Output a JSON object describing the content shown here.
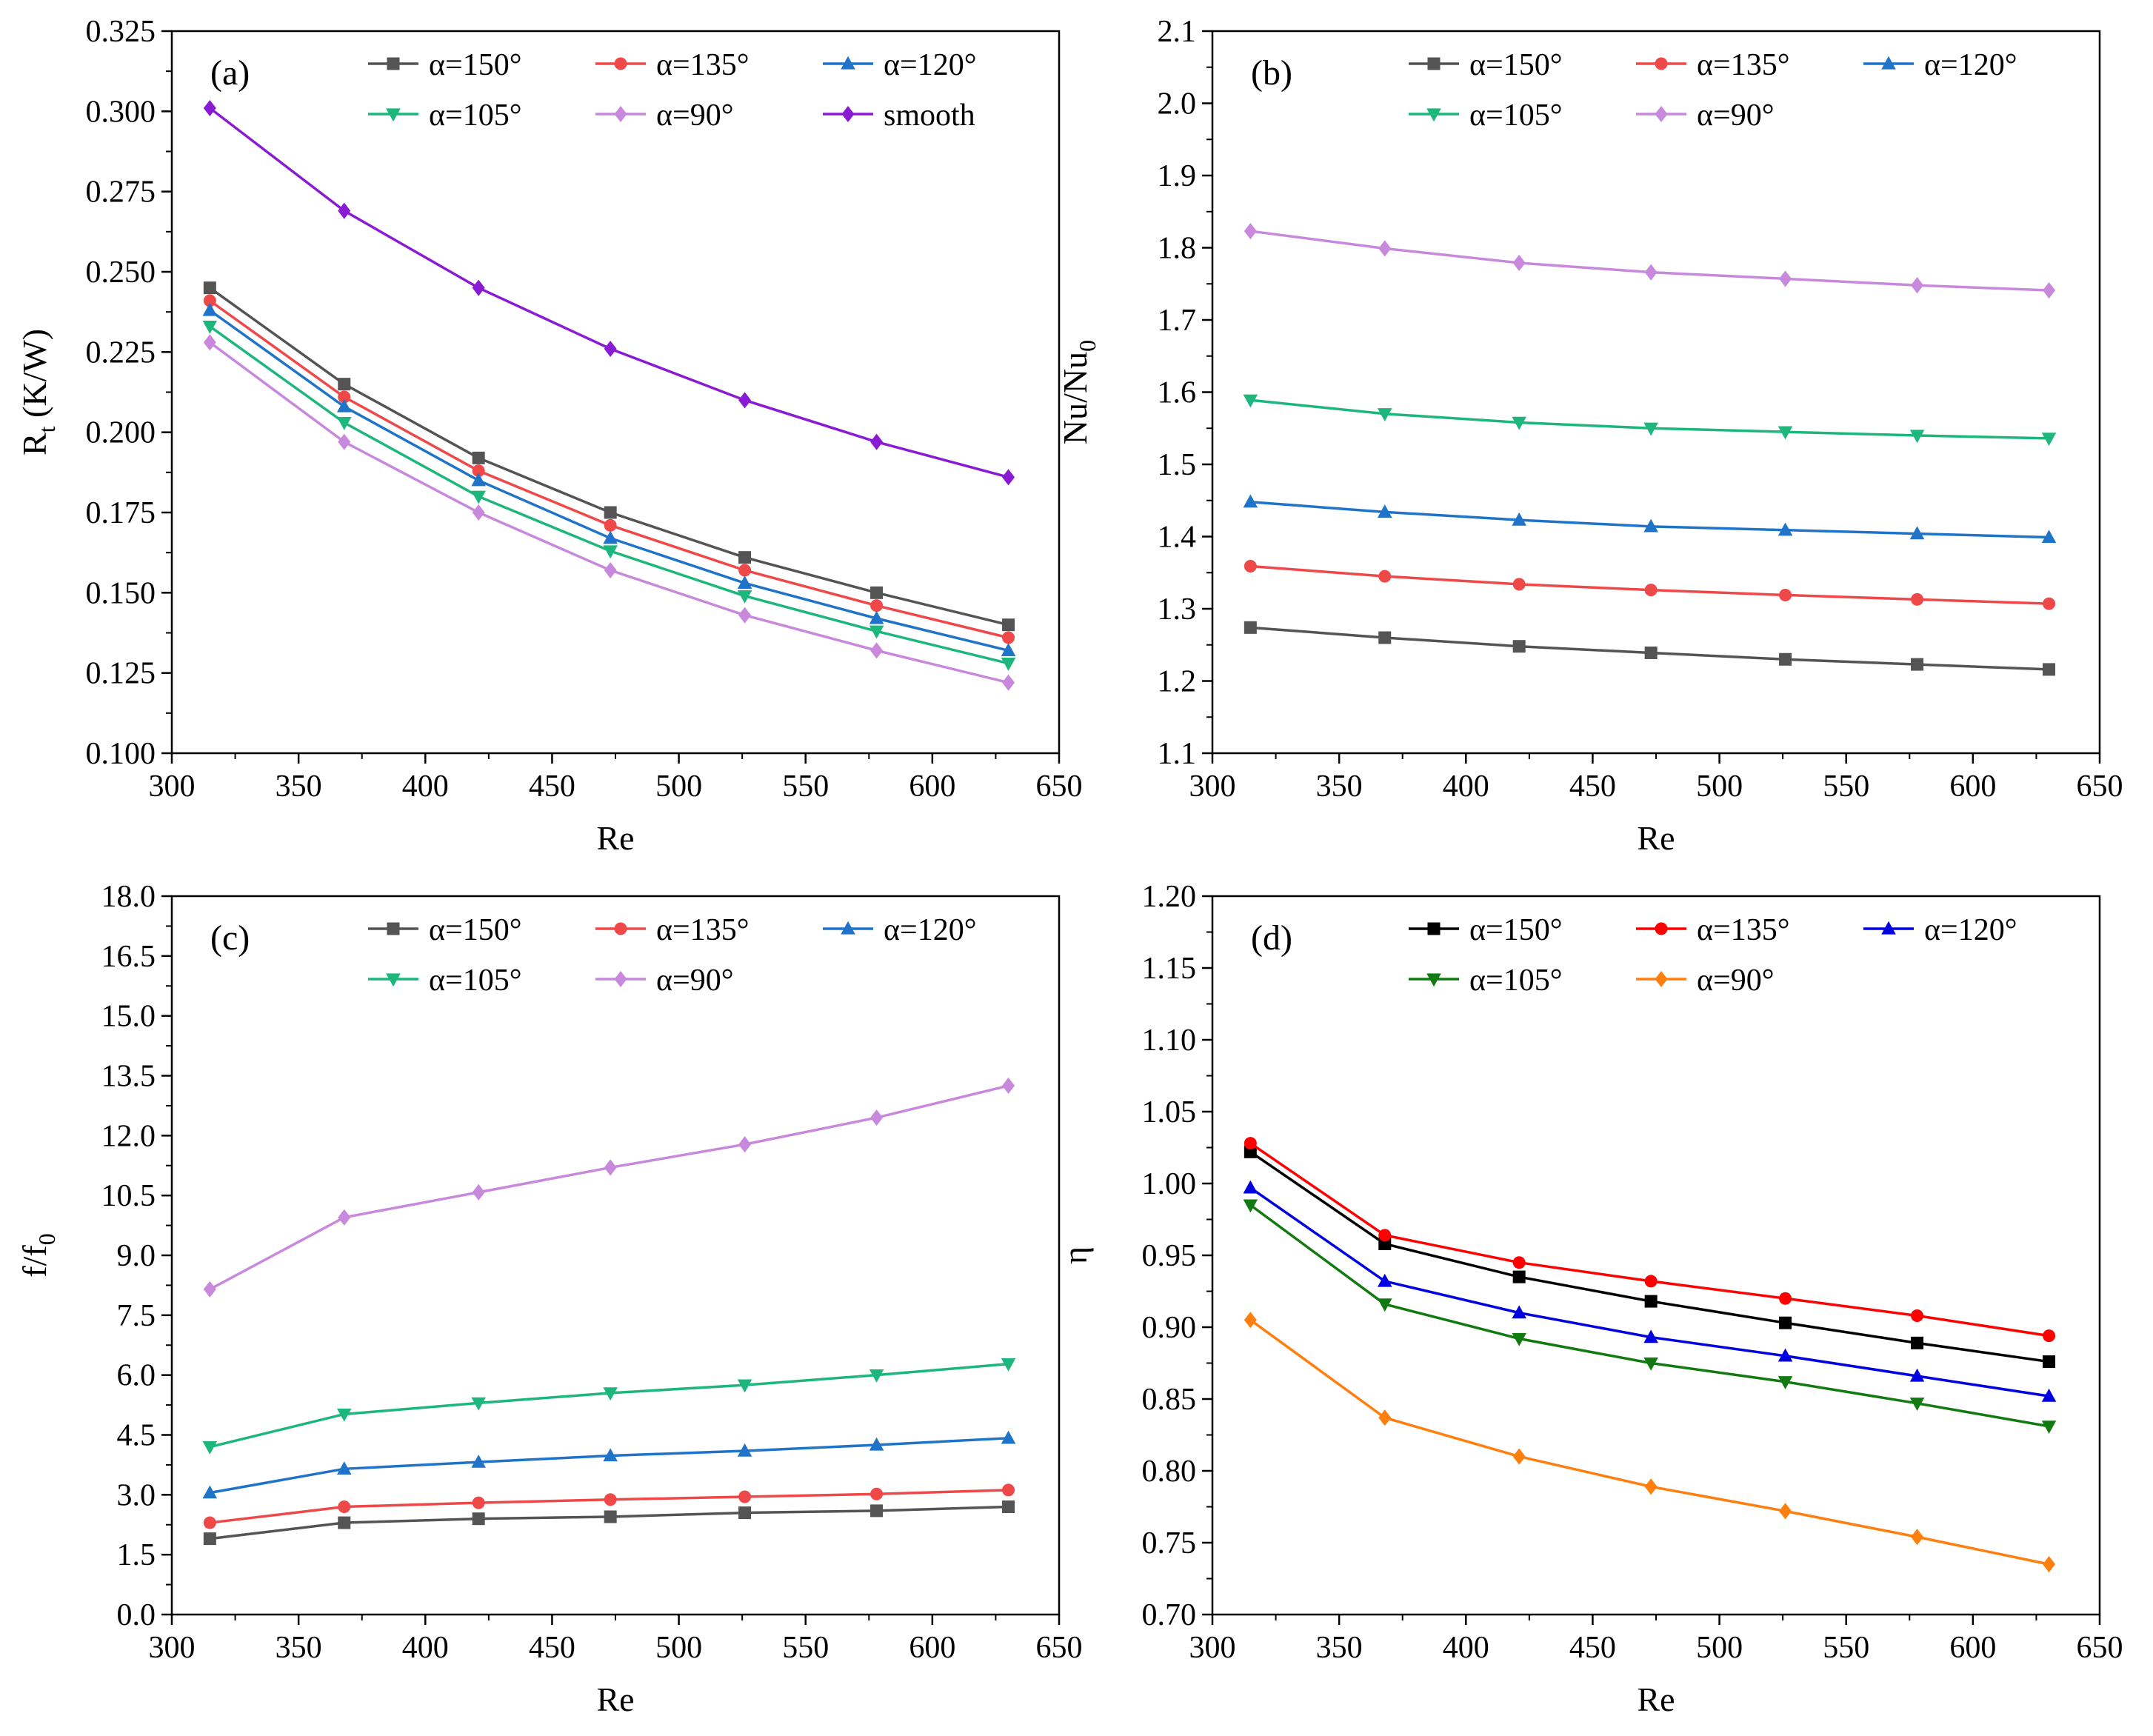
{
  "x_values": [
    315,
    368,
    421,
    473,
    526,
    578,
    630
  ],
  "chart_data": [
    {
      "type": "line",
      "panel": "(a)",
      "xlabel": "Re",
      "ylabel": {
        "main": "R",
        "sub": "t",
        "rest": " (K/W)"
      },
      "xlim": [
        300,
        650
      ],
      "xticks": [
        300,
        350,
        400,
        450,
        500,
        550,
        600,
        650
      ],
      "ylim": [
        0.1,
        0.325
      ],
      "yticks": [
        0.1,
        0.125,
        0.15,
        0.175,
        0.2,
        0.225,
        0.25,
        0.275,
        0.3,
        0.325
      ],
      "ydecimals": 3,
      "legend_columns": 3,
      "series": [
        {
          "name": "α=150°",
          "color": "#545454",
          "marker": "square",
          "values": [
            0.245,
            0.215,
            0.192,
            0.175,
            0.161,
            0.15,
            0.14
          ]
        },
        {
          "name": "α=135°",
          "color": "#ef4848",
          "marker": "circle",
          "values": [
            0.241,
            0.211,
            0.188,
            0.171,
            0.157,
            0.146,
            0.136
          ]
        },
        {
          "name": "α=120°",
          "color": "#1f74c9",
          "marker": "triangle-up",
          "values": [
            0.238,
            0.208,
            0.185,
            0.167,
            0.153,
            0.142,
            0.132
          ]
        },
        {
          "name": "α=105°",
          "color": "#1db67c",
          "marker": "triangle-down",
          "values": [
            0.233,
            0.203,
            0.18,
            0.163,
            0.149,
            0.138,
            0.128
          ]
        },
        {
          "name": "α=90°",
          "color": "#c889dd",
          "marker": "diamond",
          "values": [
            0.228,
            0.197,
            0.175,
            0.157,
            0.143,
            0.132,
            0.122
          ]
        },
        {
          "name": "smooth",
          "color": "#8a1bd4",
          "marker": "diamond",
          "values": [
            0.301,
            0.269,
            0.245,
            0.226,
            0.21,
            0.197,
            0.186
          ]
        }
      ]
    },
    {
      "type": "line",
      "panel": "(b)",
      "xlabel": "Re",
      "ylabel": {
        "main": "Nu/Nu",
        "sub": "0",
        "rest": ""
      },
      "xlim": [
        300,
        650
      ],
      "xticks": [
        300,
        350,
        400,
        450,
        500,
        550,
        600,
        650
      ],
      "ylim": [
        1.1,
        2.1
      ],
      "yticks": [
        1.1,
        1.2,
        1.3,
        1.4,
        1.5,
        1.6,
        1.7,
        1.8,
        1.9,
        2.0,
        2.1
      ],
      "ydecimals": 1,
      "legend_columns": 3,
      "series": [
        {
          "name": "α=150°",
          "color": "#545454",
          "marker": "square",
          "values": [
            1.274,
            1.26,
            1.248,
            1.239,
            1.23,
            1.223,
            1.216
          ]
        },
        {
          "name": "α=135°",
          "color": "#ef4848",
          "marker": "circle",
          "values": [
            1.359,
            1.345,
            1.334,
            1.326,
            1.319,
            1.313,
            1.307
          ]
        },
        {
          "name": "α=120°",
          "color": "#1f74c9",
          "marker": "triangle-up",
          "values": [
            1.448,
            1.434,
            1.423,
            1.414,
            1.409,
            1.404,
            1.399
          ]
        },
        {
          "name": "α=105°",
          "color": "#1db67c",
          "marker": "triangle-down",
          "values": [
            1.589,
            1.57,
            1.558,
            1.55,
            1.545,
            1.54,
            1.536
          ]
        },
        {
          "name": "α=90°",
          "color": "#c889dd",
          "marker": "diamond",
          "values": [
            1.823,
            1.799,
            1.779,
            1.766,
            1.757,
            1.748,
            1.741
          ]
        }
      ]
    },
    {
      "type": "line",
      "panel": "(c)",
      "xlabel": "Re",
      "ylabel": {
        "main": "f/f",
        "sub": "0",
        "rest": ""
      },
      "xlim": [
        300,
        650
      ],
      "xticks": [
        300,
        350,
        400,
        450,
        500,
        550,
        600,
        650
      ],
      "ylim": [
        0,
        18
      ],
      "yticks": [
        0,
        1.5,
        3,
        4.5,
        6,
        7.5,
        9,
        10.5,
        12,
        13.5,
        15,
        16.5,
        18
      ],
      "ydecimals": 1,
      "legend_columns": 3,
      "series": [
        {
          "name": "α=150°",
          "color": "#545454",
          "marker": "square",
          "values": [
            1.9,
            2.3,
            2.4,
            2.45,
            2.55,
            2.6,
            2.7
          ]
        },
        {
          "name": "α=135°",
          "color": "#ef4848",
          "marker": "circle",
          "values": [
            2.3,
            2.7,
            2.8,
            2.88,
            2.95,
            3.02,
            3.12
          ]
        },
        {
          "name": "α=120°",
          "color": "#1f74c9",
          "marker": "triangle-up",
          "values": [
            3.05,
            3.65,
            3.82,
            3.98,
            4.1,
            4.25,
            4.42
          ]
        },
        {
          "name": "α=105°",
          "color": "#1db67c",
          "marker": "triangle-down",
          "values": [
            4.2,
            5.02,
            5.3,
            5.55,
            5.75,
            6.0,
            6.28
          ]
        },
        {
          "name": "α=90°",
          "color": "#c889dd",
          "marker": "diamond",
          "values": [
            8.15,
            9.95,
            10.58,
            11.2,
            11.78,
            12.45,
            13.25
          ]
        }
      ]
    },
    {
      "type": "line",
      "panel": "(d)",
      "xlabel": "Re",
      "ylabel": {
        "main": "η",
        "sub": "",
        "rest": ""
      },
      "xlim": [
        300,
        650
      ],
      "xticks": [
        300,
        350,
        400,
        450,
        500,
        550,
        600,
        650
      ],
      "ylim": [
        0.7,
        1.2
      ],
      "yticks": [
        0.7,
        0.75,
        0.8,
        0.85,
        0.9,
        0.95,
        1.0,
        1.05,
        1.1,
        1.15,
        1.2
      ],
      "ydecimals": 2,
      "legend_columns": 3,
      "series": [
        {
          "name": "α=150°",
          "color": "#000000",
          "marker": "square",
          "values": [
            1.022,
            0.958,
            0.935,
            0.918,
            0.903,
            0.889,
            0.876
          ]
        },
        {
          "name": "α=135°",
          "color": "#ff0000",
          "marker": "circle",
          "values": [
            1.028,
            0.964,
            0.945,
            0.932,
            0.92,
            0.908,
            0.894
          ]
        },
        {
          "name": "α=120°",
          "color": "#0000e0",
          "marker": "triangle-up",
          "values": [
            0.997,
            0.932,
            0.91,
            0.893,
            0.88,
            0.866,
            0.852
          ]
        },
        {
          "name": "α=105°",
          "color": "#117a11",
          "marker": "triangle-down",
          "values": [
            0.985,
            0.916,
            0.892,
            0.875,
            0.862,
            0.847,
            0.831
          ]
        },
        {
          "name": "α=90°",
          "color": "#ff7f0e",
          "marker": "diamond",
          "values": [
            0.905,
            0.837,
            0.81,
            0.789,
            0.772,
            0.754,
            0.735
          ]
        }
      ]
    }
  ]
}
